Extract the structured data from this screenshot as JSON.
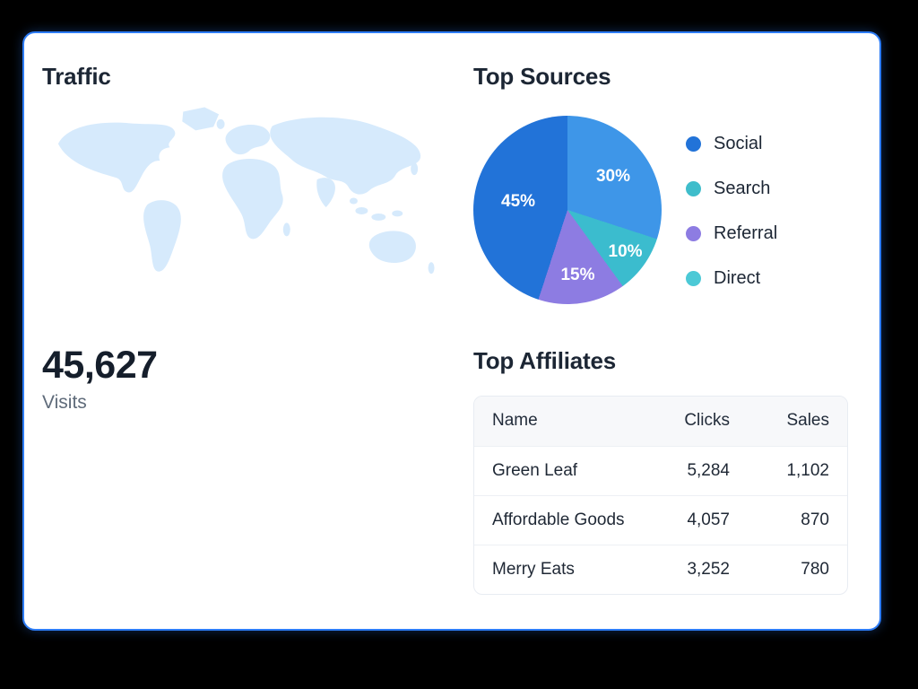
{
  "colors": {
    "card_border": "#2d7cf5",
    "card_background": "#ffffff",
    "page_background": "#000000"
  },
  "traffic": {
    "title": "Traffic",
    "visits_value": "45,627",
    "visits_label": "Visits",
    "map_color": "#d6eafc"
  },
  "chart_data": [
    {
      "type": "pie",
      "title": "Top Sources",
      "direction": "clockwise",
      "start_angle_deg": 0,
      "slices": [
        {
          "label": "Search",
          "value": 30,
          "display": "30%",
          "color": "#3E96E8",
          "label_r": 0.6
        },
        {
          "label": "Direct",
          "value": 10,
          "display": "10%",
          "color": "#3BBCCE",
          "label_r": 0.76
        },
        {
          "label": "Referral",
          "value": 15,
          "display": "15%",
          "color": "#8D7CE2",
          "label_r": 0.7
        },
        {
          "label": "Social",
          "value": 45,
          "display": "45%",
          "color": "#2273D8",
          "label_r": 0.53
        }
      ],
      "legend_position": "right",
      "legend": [
        {
          "label": "Social",
          "color": "#2273D8"
        },
        {
          "label": "Search",
          "color": "#3FBDCB"
        },
        {
          "label": "Referral",
          "color": "#8D7CE2"
        },
        {
          "label": "Direct",
          "color": "#4CC9D6"
        }
      ]
    },
    {
      "type": "table",
      "title": "Top Affiliates",
      "columns": [
        "Name",
        "Clicks",
        "Sales"
      ],
      "rows": [
        [
          "Green Leaf",
          "5,284",
          "1,102"
        ],
        [
          "Affordable Goods",
          "4,057",
          "870"
        ],
        [
          "Merry Eats",
          "3,252",
          "780"
        ]
      ]
    }
  ]
}
